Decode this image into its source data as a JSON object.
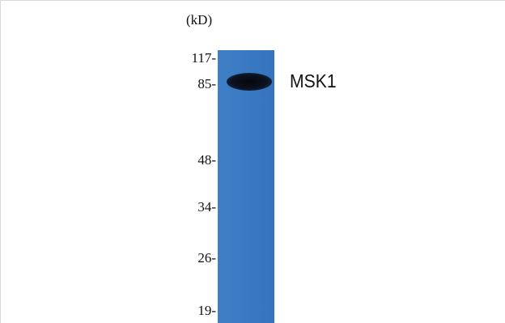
{
  "figure": {
    "unit_label": "(kD)",
    "markers": [
      "117-",
      "85-",
      "48-",
      "34-",
      "26-",
      "19-"
    ],
    "band_label": "MSK1",
    "colors": {
      "lane": "#3a7ac2",
      "band": "#0b1220",
      "frame": "#d9d9d9"
    }
  }
}
